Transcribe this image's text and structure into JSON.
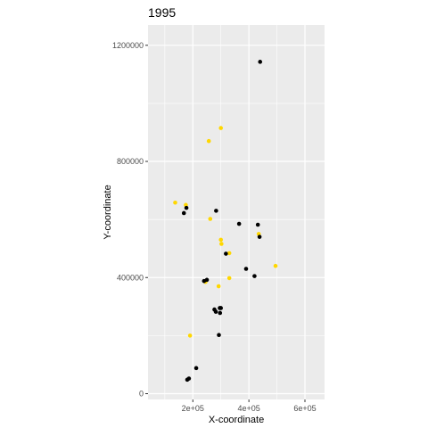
{
  "chart_data": {
    "type": "scatter",
    "title": "1995",
    "xlabel": "X-coordinate",
    "ylabel": "Y-coordinate",
    "xlim": [
      40000,
      670000
    ],
    "ylim": [
      -20000,
      1270000
    ],
    "grid": true,
    "legend": "none",
    "panel_background": "#ebebeb",
    "grid_color": "#ffffff",
    "x_ticks": [
      {
        "value": 200000,
        "label": "2e+05"
      },
      {
        "value": 400000,
        "label": "4e+05"
      },
      {
        "value": 600000,
        "label": "6e+05"
      }
    ],
    "y_ticks": [
      {
        "value": 0,
        "label": "0"
      },
      {
        "value": 400000,
        "label": "400000"
      },
      {
        "value": 800000,
        "label": "800000"
      },
      {
        "value": 1200000,
        "label": "1200000"
      }
    ],
    "series": [
      {
        "color": "#ffd700",
        "points": [
          [
            300000,
            915000
          ],
          [
            257000,
            870000
          ],
          [
            137000,
            658000
          ],
          [
            175000,
            650000
          ],
          [
            262000,
            602000
          ],
          [
            300000,
            530000
          ],
          [
            302000,
            516000
          ],
          [
            330000,
            484000
          ],
          [
            435000,
            550000
          ],
          [
            495000,
            440000
          ],
          [
            330000,
            398000
          ],
          [
            245000,
            385000
          ],
          [
            292000,
            370000
          ],
          [
            190000,
            200000
          ]
        ]
      },
      {
        "color": "#000000",
        "points": [
          [
            440000,
            1143000
          ],
          [
            283000,
            630000
          ],
          [
            177000,
            640000
          ],
          [
            168000,
            622000
          ],
          [
            365000,
            585000
          ],
          [
            432000,
            582000
          ],
          [
            438000,
            540000
          ],
          [
            318000,
            482000
          ],
          [
            390000,
            430000
          ],
          [
            420000,
            405000
          ],
          [
            240000,
            388000
          ],
          [
            250000,
            392000
          ],
          [
            296000,
            295000
          ],
          [
            300000,
            295000
          ],
          [
            277000,
            290000
          ],
          [
            282000,
            282000
          ],
          [
            297000,
            278000
          ],
          [
            293000,
            202000
          ],
          [
            212000,
            88000
          ],
          [
            186000,
            52000
          ],
          [
            180000,
            48000
          ]
        ]
      }
    ]
  }
}
